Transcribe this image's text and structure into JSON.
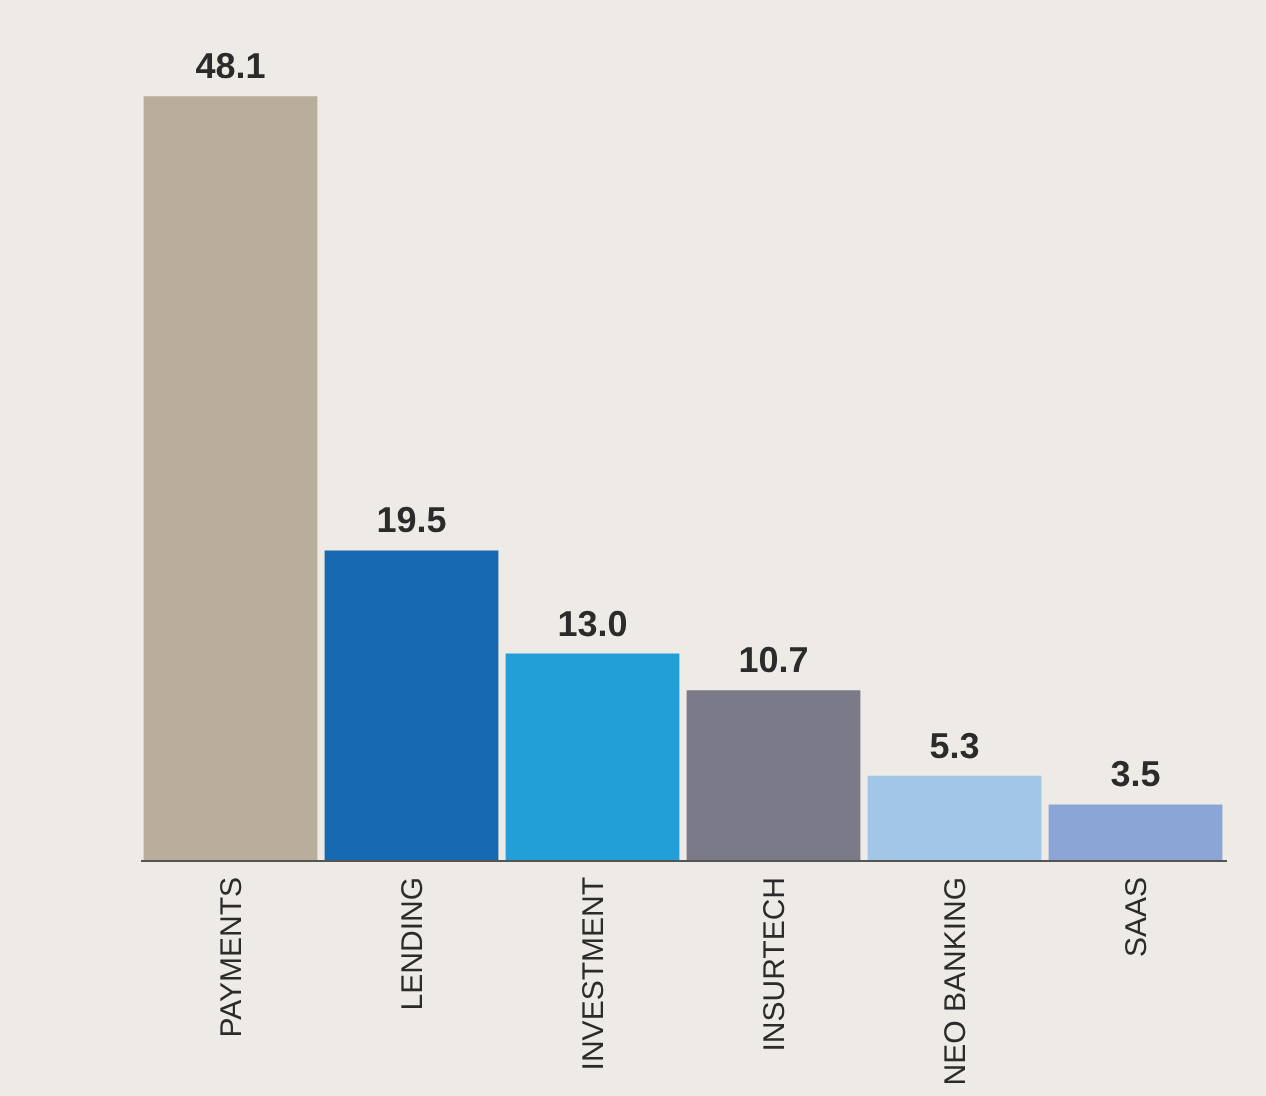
{
  "chart_data": {
    "type": "bar",
    "categories": [
      "PAYMENTS",
      "LENDING",
      "INVESTMENT",
      "INSURTECH",
      "NEO BANKING",
      "SAAS"
    ],
    "values": [
      48.1,
      19.5,
      13.0,
      10.7,
      5.3,
      3.5
    ],
    "colors": [
      "#b9ad9b",
      "#1769b2",
      "#229fd6",
      "#7b7a88",
      "#a2c6e6",
      "#8ba6d6"
    ],
    "value_labels": [
      "48.1",
      "19.5",
      "13.0",
      "10.7",
      "5.3",
      "3.5"
    ]
  }
}
